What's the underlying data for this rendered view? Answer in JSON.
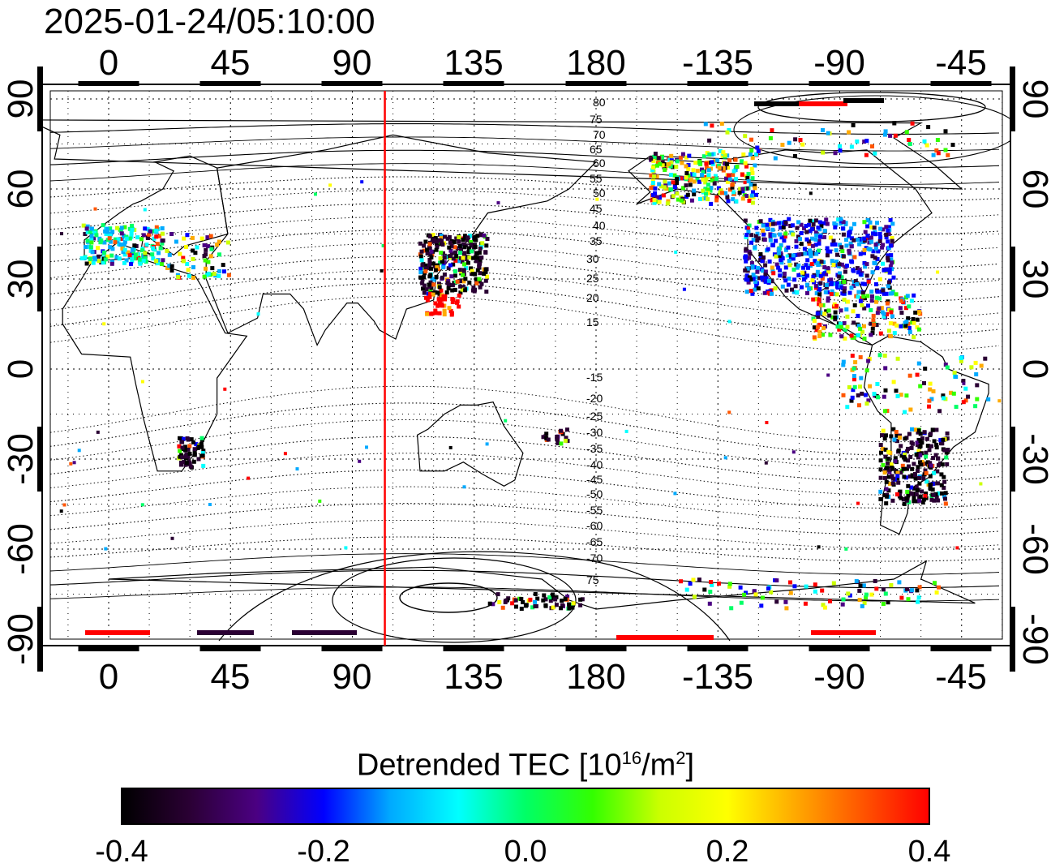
{
  "timestamp": "2025-01-24/05:10:00",
  "map": {
    "top_longitude_ticks": [
      "0",
      "45",
      "90",
      "135",
      "180",
      "-135",
      "-90",
      "-45"
    ],
    "bottom_longitude_ticks": [
      "0",
      "45",
      "90",
      "135",
      "180",
      "-135",
      "-90",
      "-45"
    ],
    "left_latitude_ticks": [
      "90",
      "60",
      "30",
      "0",
      "-30",
      "-60",
      "-90"
    ],
    "right_latitude_ticks": [
      "90",
      "60",
      "30",
      "0",
      "-30",
      "-60",
      "-90"
    ],
    "contour_labels_north": [
      "80",
      "75",
      "70",
      "65",
      "60",
      "55",
      "50",
      "45",
      "40",
      "35",
      "30",
      "25",
      "20",
      "15"
    ],
    "contour_labels_south": [
      "-15",
      "-20",
      "-25",
      "-30",
      "-35",
      "-40",
      "-45",
      "-50",
      "-55",
      "-60",
      "-65",
      "-70",
      "75"
    ],
    "marker_line_longitude": 102,
    "marker_line_color": "#ff0000",
    "grid": "dotted"
  },
  "colorbar": {
    "title_prefix": "Detrended TEC  [10",
    "title_sup1": "16",
    "title_mid": "/m",
    "title_sup2": "2",
    "title_suffix": "]",
    "tick_labels": [
      "-0.4",
      "-0.2",
      "0.0",
      "0.2",
      "0.4"
    ],
    "range": [
      -0.4,
      0.4
    ],
    "colors": [
      "#000000",
      "#2a0033",
      "#4b0082",
      "#0000ff",
      "#00aaff",
      "#00ffff",
      "#00ff66",
      "#33ff00",
      "#ccff00",
      "#ffff00",
      "#ffaa00",
      "#ff5500",
      "#ff0000"
    ]
  }
}
